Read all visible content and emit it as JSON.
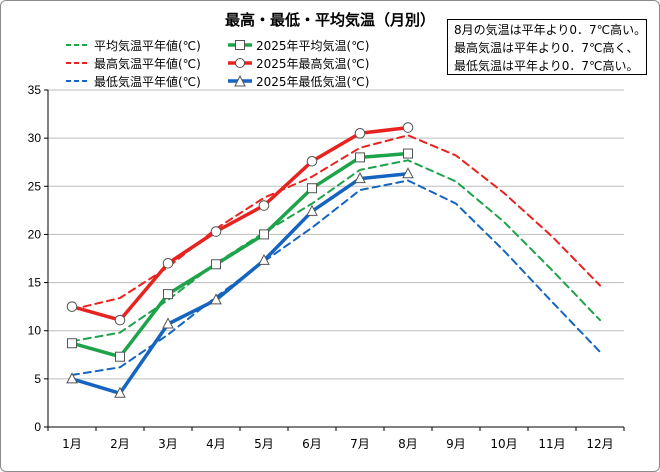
{
  "chart_data": {
    "type": "line",
    "title": "最高・最低・平均気温（月別）",
    "categories": [
      "1月",
      "2月",
      "3月",
      "4月",
      "5月",
      "6月",
      "7月",
      "8月",
      "9月",
      "10月",
      "11月",
      "12月"
    ],
    "ylim": [
      0,
      35
    ],
    "yticks": [
      "0",
      "5",
      "10",
      "15",
      "20",
      "25",
      "30",
      "35"
    ],
    "grid": "horizontal",
    "legend_position": "top-left",
    "annotation": [
      "8月の気温は平年より0．7℃高い。",
      "最高気温は平年より0．7℃高く、",
      "最低気温は平年より0．7℃高い。"
    ],
    "series": [
      {
        "name": "平均気温平年値(℃)",
        "color": "#1fa34a",
        "style": "dashed",
        "marker": "none",
        "values": [
          8.9,
          9.8,
          13.2,
          17.0,
          20.2,
          23.2,
          26.7,
          27.7,
          25.5,
          21.3,
          16.3,
          11.1
        ]
      },
      {
        "name": "2025年平均気温(℃)",
        "color": "#1fa34a",
        "style": "solid",
        "marker": "square",
        "values": [
          8.7,
          7.3,
          13.8,
          16.9,
          20.0,
          24.8,
          28.0,
          28.4,
          null,
          null,
          null,
          null
        ]
      },
      {
        "name": "最高気温平年値(℃)",
        "color": "#e8231f",
        "style": "dashed",
        "marker": "none",
        "values": [
          12.2,
          13.4,
          16.6,
          20.6,
          23.8,
          26.0,
          29.0,
          30.3,
          28.2,
          24.3,
          19.8,
          14.7
        ]
      },
      {
        "name": "2025年最高気温(℃)",
        "color": "#e8231f",
        "style": "solid",
        "marker": "circle",
        "values": [
          12.5,
          11.1,
          17.0,
          20.3,
          23.0,
          27.6,
          30.5,
          31.1,
          null,
          null,
          null,
          null
        ]
      },
      {
        "name": "最低気温平年値(℃)",
        "color": "#1565c0",
        "style": "dashed",
        "marker": "none",
        "values": [
          5.4,
          6.2,
          9.6,
          13.5,
          17.2,
          20.7,
          24.6,
          25.6,
          23.2,
          18.3,
          13.0,
          7.8
        ]
      },
      {
        "name": "2025年最低気温(℃)",
        "color": "#1565c0",
        "style": "solid",
        "marker": "triangle",
        "values": [
          5.0,
          3.5,
          10.7,
          13.2,
          17.3,
          22.4,
          25.8,
          26.3,
          null,
          null,
          null,
          null
        ]
      }
    ]
  }
}
